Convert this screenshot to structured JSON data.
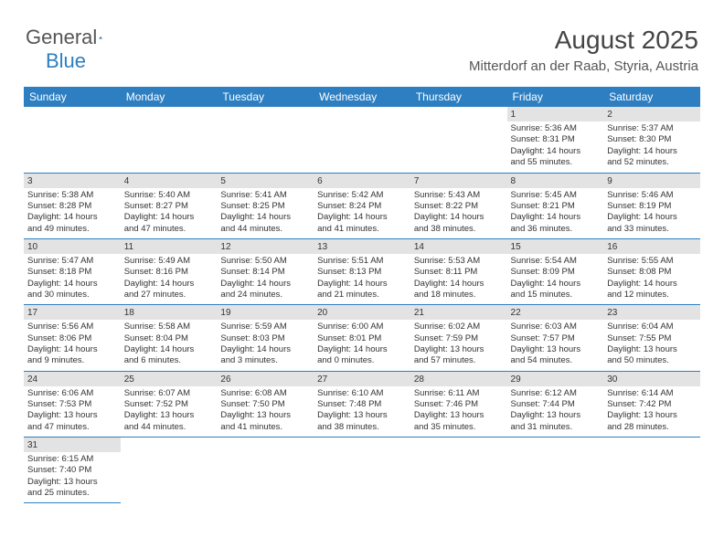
{
  "logo": {
    "text_general": "General",
    "text_blue": "Blue"
  },
  "title": "August 2025",
  "location": "Mitterdorf an der Raab, Styria, Austria",
  "header_bg": "#2d7fc1",
  "daybar_bg": "#e3e3e3",
  "border_color": "#2d7fc1",
  "weekdays": [
    "Sunday",
    "Monday",
    "Tuesday",
    "Wednesday",
    "Thursday",
    "Friday",
    "Saturday"
  ],
  "weeks": [
    [
      null,
      null,
      null,
      null,
      null,
      {
        "n": "1",
        "sr": "5:36 AM",
        "ss": "8:31 PM",
        "dh": "14",
        "dm": "55"
      },
      {
        "n": "2",
        "sr": "5:37 AM",
        "ss": "8:30 PM",
        "dh": "14",
        "dm": "52"
      }
    ],
    [
      {
        "n": "3",
        "sr": "5:38 AM",
        "ss": "8:28 PM",
        "dh": "14",
        "dm": "49"
      },
      {
        "n": "4",
        "sr": "5:40 AM",
        "ss": "8:27 PM",
        "dh": "14",
        "dm": "47"
      },
      {
        "n": "5",
        "sr": "5:41 AM",
        "ss": "8:25 PM",
        "dh": "14",
        "dm": "44"
      },
      {
        "n": "6",
        "sr": "5:42 AM",
        "ss": "8:24 PM",
        "dh": "14",
        "dm": "41"
      },
      {
        "n": "7",
        "sr": "5:43 AM",
        "ss": "8:22 PM",
        "dh": "14",
        "dm": "38"
      },
      {
        "n": "8",
        "sr": "5:45 AM",
        "ss": "8:21 PM",
        "dh": "14",
        "dm": "36"
      },
      {
        "n": "9",
        "sr": "5:46 AM",
        "ss": "8:19 PM",
        "dh": "14",
        "dm": "33"
      }
    ],
    [
      {
        "n": "10",
        "sr": "5:47 AM",
        "ss": "8:18 PM",
        "dh": "14",
        "dm": "30"
      },
      {
        "n": "11",
        "sr": "5:49 AM",
        "ss": "8:16 PM",
        "dh": "14",
        "dm": "27"
      },
      {
        "n": "12",
        "sr": "5:50 AM",
        "ss": "8:14 PM",
        "dh": "14",
        "dm": "24"
      },
      {
        "n": "13",
        "sr": "5:51 AM",
        "ss": "8:13 PM",
        "dh": "14",
        "dm": "21"
      },
      {
        "n": "14",
        "sr": "5:53 AM",
        "ss": "8:11 PM",
        "dh": "14",
        "dm": "18"
      },
      {
        "n": "15",
        "sr": "5:54 AM",
        "ss": "8:09 PM",
        "dh": "14",
        "dm": "15"
      },
      {
        "n": "16",
        "sr": "5:55 AM",
        "ss": "8:08 PM",
        "dh": "14",
        "dm": "12"
      }
    ],
    [
      {
        "n": "17",
        "sr": "5:56 AM",
        "ss": "8:06 PM",
        "dh": "14",
        "dm": "9"
      },
      {
        "n": "18",
        "sr": "5:58 AM",
        "ss": "8:04 PM",
        "dh": "14",
        "dm": "6"
      },
      {
        "n": "19",
        "sr": "5:59 AM",
        "ss": "8:03 PM",
        "dh": "14",
        "dm": "3"
      },
      {
        "n": "20",
        "sr": "6:00 AM",
        "ss": "8:01 PM",
        "dh": "14",
        "dm": "0"
      },
      {
        "n": "21",
        "sr": "6:02 AM",
        "ss": "7:59 PM",
        "dh": "13",
        "dm": "57"
      },
      {
        "n": "22",
        "sr": "6:03 AM",
        "ss": "7:57 PM",
        "dh": "13",
        "dm": "54"
      },
      {
        "n": "23",
        "sr": "6:04 AM",
        "ss": "7:55 PM",
        "dh": "13",
        "dm": "50"
      }
    ],
    [
      {
        "n": "24",
        "sr": "6:06 AM",
        "ss": "7:53 PM",
        "dh": "13",
        "dm": "47"
      },
      {
        "n": "25",
        "sr": "6:07 AM",
        "ss": "7:52 PM",
        "dh": "13",
        "dm": "44"
      },
      {
        "n": "26",
        "sr": "6:08 AM",
        "ss": "7:50 PM",
        "dh": "13",
        "dm": "41"
      },
      {
        "n": "27",
        "sr": "6:10 AM",
        "ss": "7:48 PM",
        "dh": "13",
        "dm": "38"
      },
      {
        "n": "28",
        "sr": "6:11 AM",
        "ss": "7:46 PM",
        "dh": "13",
        "dm": "35"
      },
      {
        "n": "29",
        "sr": "6:12 AM",
        "ss": "7:44 PM",
        "dh": "13",
        "dm": "31"
      },
      {
        "n": "30",
        "sr": "6:14 AM",
        "ss": "7:42 PM",
        "dh": "13",
        "dm": "28"
      }
    ],
    [
      {
        "n": "31",
        "sr": "6:15 AM",
        "ss": "7:40 PM",
        "dh": "13",
        "dm": "25"
      },
      null,
      null,
      null,
      null,
      null,
      null
    ]
  ],
  "labels": {
    "sunrise": "Sunrise:",
    "sunset": "Sunset:",
    "daylight": "Daylight:",
    "hours_word": "hours",
    "and_word": "and",
    "minutes_word": "minutes."
  }
}
